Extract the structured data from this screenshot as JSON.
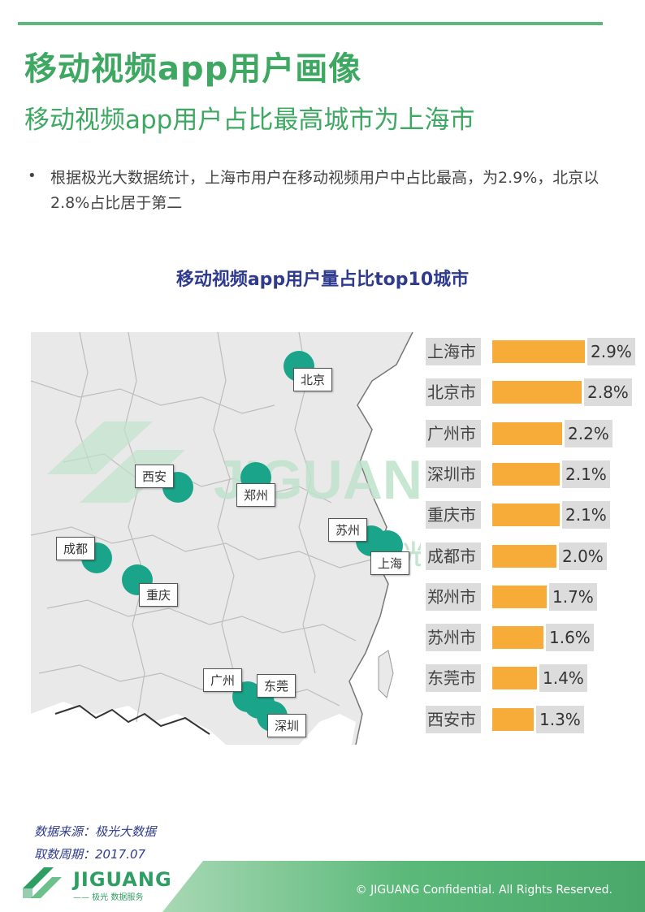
{
  "header": {
    "title": "移动视频app用户画像",
    "subtitle": "移动视频app用户占比最高城市为上海市"
  },
  "bullet": {
    "symbol": "•",
    "text": "根据极光大数据统计，上海市用户在移动视频用户中占比最高，为2.9%，北京以2.8%占比居于第二"
  },
  "map": {
    "watermark": "JIGUANG",
    "watermark_sub": "光 数据服务",
    "cities": [
      "北京",
      "西安",
      "郑州",
      "成都",
      "重庆",
      "苏州",
      "上海",
      "广州",
      "东莞",
      "深圳"
    ]
  },
  "chart_data": {
    "type": "bar",
    "title": "移动视频app用户量占比top10城市",
    "categories": [
      "上海市",
      "北京市",
      "广州市",
      "深圳市",
      "重庆市",
      "成都市",
      "郑州市",
      "苏州市",
      "东莞市",
      "西安市"
    ],
    "values": [
      2.9,
      2.8,
      2.2,
      2.1,
      2.1,
      2.0,
      1.7,
      1.6,
      1.4,
      1.3
    ],
    "value_labels": [
      "2.9%",
      "2.8%",
      "2.2%",
      "2.1%",
      "2.1%",
      "2.0%",
      "1.7%",
      "1.6%",
      "1.4%",
      "1.3%"
    ],
    "bar_color": "#f7ac3a"
  },
  "source": {
    "line1": "数据来源：极光大数据",
    "line2": "取数周期：2017.07"
  },
  "footer": {
    "logo": "JIGUANG",
    "logo_sub": "—— 极光  数据服务",
    "copyright": "© JIGUANG  Confidential. All Rights Reserved.",
    "band_color": "#5bb97a"
  }
}
